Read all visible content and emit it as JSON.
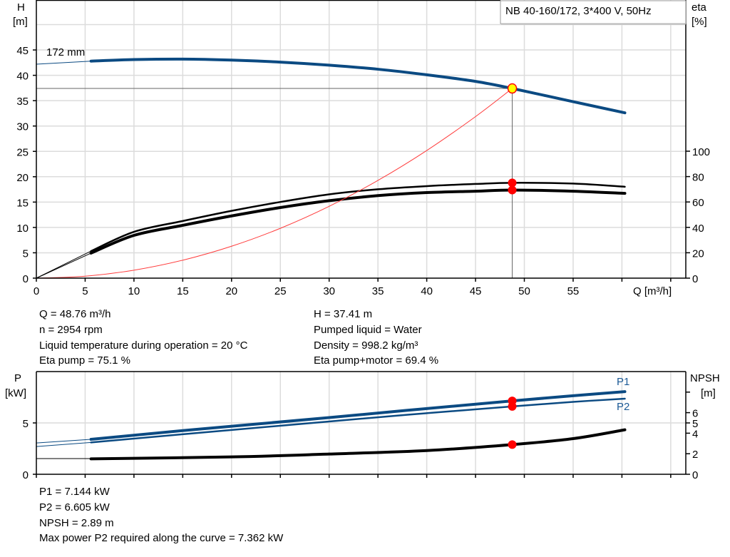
{
  "legend_box": "NB 40-160/172, 3*400 V, 50Hz",
  "colors": {
    "head": "#0b4a82",
    "power": "#0b4a82",
    "efficiency": "#000000",
    "npsh": "#000000",
    "system": "#ff3b3b",
    "marker": "#ff0000",
    "duty_point": "#ffff00"
  },
  "chart_data": [
    {
      "type": "line",
      "title": "",
      "xlabel": "Q [m³/h]",
      "ylabel_left": [
        "H",
        "[m]"
      ],
      "ylabel_right": [
        "eta",
        "[%]"
      ],
      "xlim": [
        0,
        66.5
      ],
      "ylim_left": [
        0,
        55
      ],
      "ylim_right": [
        0,
        100
      ],
      "grid": true,
      "x_ticks": [
        0,
        5,
        10,
        15,
        20,
        25,
        30,
        35,
        40,
        45,
        50,
        55
      ],
      "y_ticks_left": [
        0,
        5,
        10,
        15,
        20,
        25,
        30,
        35,
        40,
        45
      ],
      "y_ticks_right": [
        0,
        20,
        40,
        60,
        80,
        100
      ],
      "curve_label": "172 mm",
      "series": [
        {
          "id": "head",
          "axis": "left",
          "extrapolated": [
            [
              0,
              42.2
            ],
            [
              5.6,
              42.8
            ]
          ],
          "points": [
            [
              5.6,
              42.8
            ],
            [
              10,
              43.1
            ],
            [
              15,
              43.2
            ],
            [
              20,
              43.0
            ],
            [
              25,
              42.6
            ],
            [
              30,
              42.0
            ],
            [
              35,
              41.2
            ],
            [
              40,
              40.1
            ],
            [
              45,
              38.8
            ],
            [
              48.76,
              37.41
            ],
            [
              55,
              34.8
            ],
            [
              60.3,
              32.6
            ]
          ]
        },
        {
          "id": "eta-pump",
          "axis": "right",
          "extrapolated": [
            [
              0,
              0
            ],
            [
              5.6,
              21.3
            ]
          ],
          "points": [
            [
              5.6,
              21.3
            ],
            [
              10,
              36.5
            ],
            [
              15,
              45
            ],
            [
              20,
              53
            ],
            [
              25,
              60
            ],
            [
              30,
              66
            ],
            [
              35,
              70
            ],
            [
              40,
              72.5
            ],
            [
              45,
              74.2
            ],
            [
              48.76,
              75.1
            ],
            [
              55,
              74.5
            ],
            [
              60.3,
              72
            ]
          ]
        },
        {
          "id": "eta-pump-motor",
          "axis": "right",
          "extrapolated": [
            [
              0,
              0
            ],
            [
              5.6,
              19.7
            ]
          ],
          "points": [
            [
              5.6,
              19.7
            ],
            [
              10,
              33.7
            ],
            [
              15,
              41.6
            ],
            [
              20,
              49
            ],
            [
              25,
              55.6
            ],
            [
              30,
              61
            ],
            [
              35,
              65
            ],
            [
              40,
              67.4
            ],
            [
              45,
              68.5
            ],
            [
              48.76,
              69.4
            ],
            [
              55,
              68.5
            ],
            [
              60.3,
              66.8
            ]
          ]
        },
        {
          "id": "system-curve",
          "axis": "left",
          "points": [
            [
              0,
              0
            ],
            [
              5,
              0.39
            ],
            [
              10,
              1.57
            ],
            [
              15,
              3.54
            ],
            [
              20,
              6.29
            ],
            [
              25,
              9.83
            ],
            [
              30,
              14.16
            ],
            [
              35,
              19.27
            ],
            [
              40,
              25.17
            ],
            [
              45,
              31.86
            ],
            [
              48.76,
              37.41
            ]
          ]
        }
      ],
      "duty_point": {
        "Q": 48.76,
        "H": 37.41,
        "eta_pump": 75.1,
        "eta_pump_motor": 69.4
      }
    },
    {
      "type": "line",
      "xlim": [
        0,
        66.5
      ],
      "ylabel_left": [
        "P",
        "[kW]"
      ],
      "ylabel_right": [
        "NPSH",
        "[m]"
      ],
      "ylim_left": [
        0,
        10
      ],
      "ylim_right": [
        0,
        10
      ],
      "grid": true,
      "x_ticks": [
        0,
        5,
        10,
        15,
        20,
        25,
        30,
        35,
        40,
        45,
        50,
        55
      ],
      "y_ticks_left": [
        0,
        5
      ],
      "y_ticks_right": [
        0,
        2,
        4,
        5,
        6
      ],
      "y_ticks_right_unlabeled": [
        8
      ],
      "series": [
        {
          "id": "P1",
          "name": "P1",
          "axis": "left",
          "extrapolated": [
            [
              0,
              3.05
            ],
            [
              5.6,
              3.4
            ]
          ],
          "points": [
            [
              5.6,
              3.4
            ],
            [
              15,
              4.25
            ],
            [
              30,
              5.52
            ],
            [
              40,
              6.4
            ],
            [
              48.76,
              7.144
            ],
            [
              55,
              7.65
            ],
            [
              60.3,
              8.05
            ]
          ]
        },
        {
          "id": "P2",
          "name": "P2",
          "axis": "left",
          "extrapolated": [
            [
              0,
              2.7
            ],
            [
              5.6,
              3.1
            ]
          ],
          "points": [
            [
              5.6,
              3.1
            ],
            [
              15,
              3.9
            ],
            [
              30,
              5.14
            ],
            [
              40,
              5.95
            ],
            [
              48.76,
              6.605
            ],
            [
              55,
              7.05
            ],
            [
              60.3,
              7.36
            ]
          ]
        },
        {
          "id": "NPSH",
          "axis": "right",
          "extrapolated": [
            [
              0,
              1.53
            ],
            [
              5.6,
              1.53
            ]
          ],
          "points": [
            [
              5.6,
              1.5
            ],
            [
              20,
              1.69
            ],
            [
              30,
              1.97
            ],
            [
              40,
              2.31
            ],
            [
              48.76,
              2.89
            ],
            [
              55,
              3.47
            ],
            [
              60.3,
              4.33
            ]
          ]
        }
      ],
      "duty_point": {
        "Q": 48.76,
        "P1": 7.144,
        "P2": 6.605,
        "NPSH": 2.89
      }
    }
  ],
  "info_top": {
    "left": [
      "Q = 48.76 m³/h",
      "n = 2954 rpm",
      "Liquid temperature during operation = 20 °C",
      "Eta pump = 75.1 %"
    ],
    "right": [
      "H = 37.41 m",
      "Pumped liquid = Water",
      "Density = 998.2 kg/m³",
      "Eta pump+motor = 69.4 %"
    ]
  },
  "info_bottom": [
    "P1 = 7.144 kW",
    "P2 = 6.605 kW",
    "NPSH = 2.89 m",
    "Max power P2 required along the curve = 7.362 kW"
  ]
}
